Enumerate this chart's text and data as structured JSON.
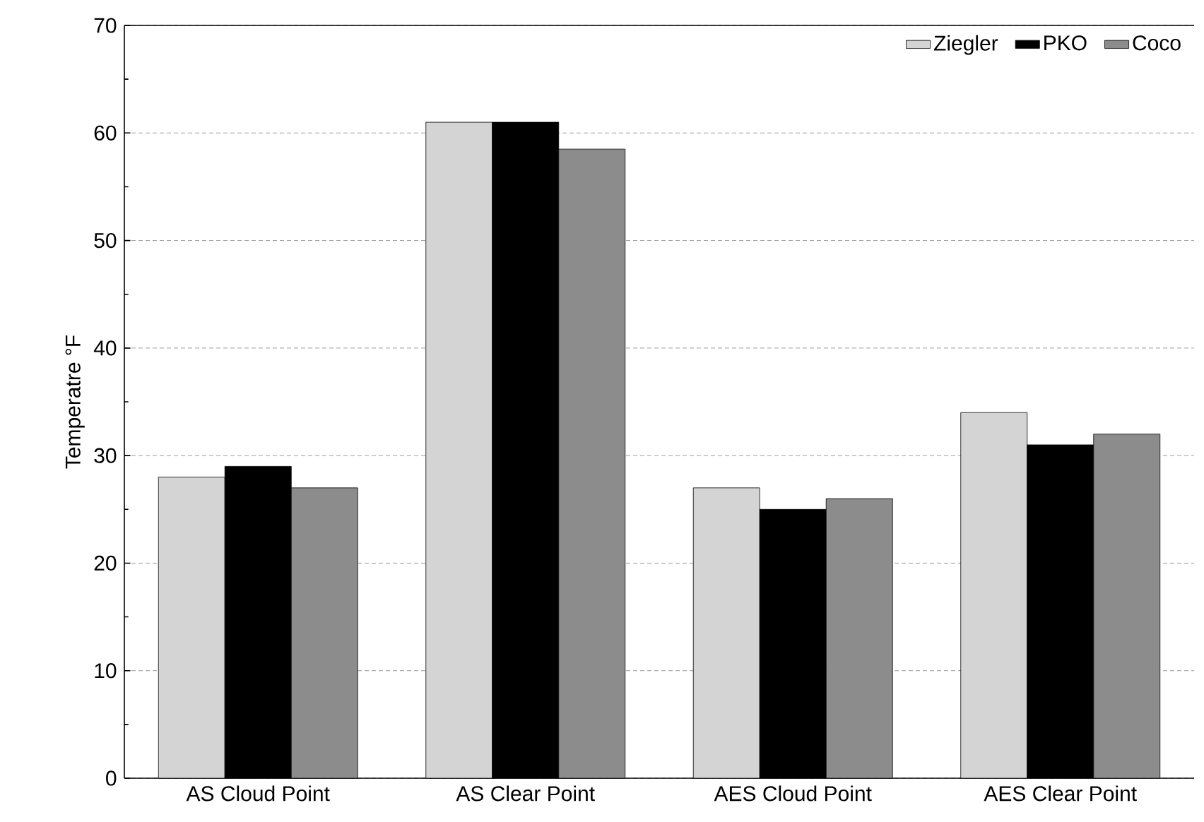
{
  "chart_data": {
    "type": "bar",
    "ylabel": "Temperatre °F",
    "categories": [
      "AS Cloud Point",
      "AS Clear Point",
      "AES Cloud Point",
      "AES Clear Point"
    ],
    "series": [
      {
        "name": "Ziegler",
        "color": "#d4d4d4",
        "values": [
          28,
          61,
          27,
          34
        ]
      },
      {
        "name": "PKO",
        "color": "#000000",
        "values": [
          29,
          61,
          25,
          31
        ]
      },
      {
        "name": "Coco",
        "color": "#8c8c8c",
        "values": [
          27,
          58.5,
          26,
          32
        ]
      }
    ],
    "ylim": [
      0,
      70
    ],
    "yticks": [
      0,
      10,
      20,
      30,
      40,
      50,
      60,
      70
    ],
    "grid": "y",
    "legend": "top right"
  }
}
